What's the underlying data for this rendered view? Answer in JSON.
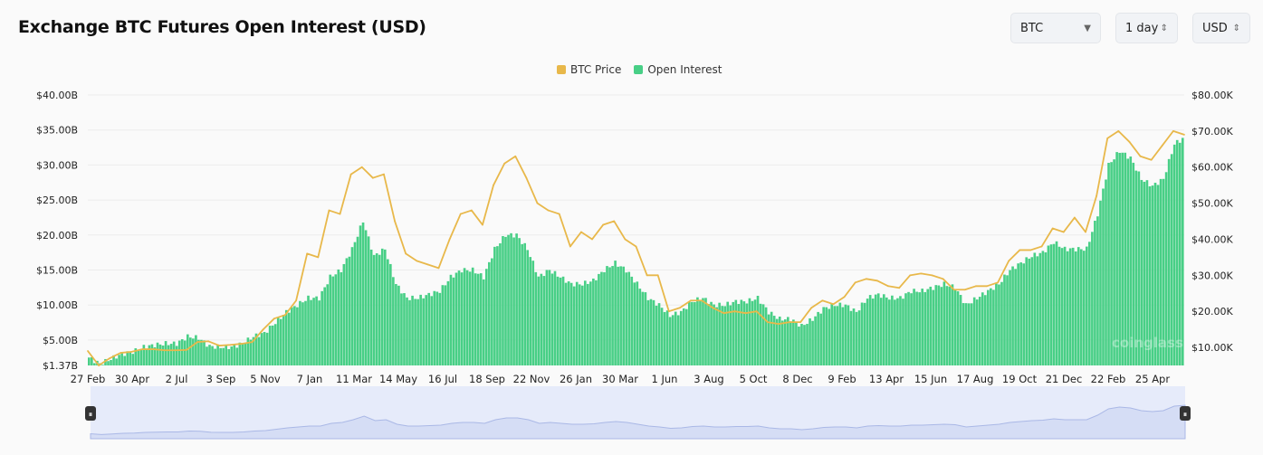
{
  "header": {
    "title": "Exchange BTC Futures Open Interest (USD)",
    "coin_select": "BTC",
    "interval_select": "1 day",
    "currency_select": "USD"
  },
  "watermark": "coinglass",
  "colors": {
    "price": "#e8b84a",
    "oi": "#48cf86",
    "navigator": "#e6ebfa"
  },
  "chart_data": {
    "type": "bar+line",
    "title": "Exchange BTC Futures Open Interest (USD)",
    "legend": [
      "BTC Price",
      "Open Interest"
    ],
    "legend_position": "top",
    "grid": true,
    "x_tick_labels": [
      "27 Feb",
      "30 Apr",
      "2 Jul",
      "3 Sep",
      "5 Nov",
      "7 Jan",
      "11 Mar",
      "14 May",
      "16 Jul",
      "18 Sep",
      "22 Nov",
      "26 Jan",
      "30 Mar",
      "1 Jun",
      "3 Aug",
      "5 Oct",
      "8 Dec",
      "9 Feb",
      "13 Apr",
      "15 Jun",
      "17 Aug",
      "19 Oct",
      "21 Dec",
      "22 Feb",
      "25 Apr"
    ],
    "y_left": {
      "ticks": [
        "$1.37B",
        "$5.00B",
        "$10.00B",
        "$15.00B",
        "$20.00B",
        "$25.00B",
        "$30.00B",
        "$35.00B",
        "$40.00B"
      ],
      "tick_values": [
        1.37,
        5,
        10,
        15,
        20,
        25,
        30,
        35,
        40
      ],
      "ylim": [
        1.37,
        40
      ],
      "unit": "USD billions"
    },
    "y_right": {
      "ticks": [
        "$10.00K",
        "$20.00K",
        "$30.00K",
        "$40.00K",
        "$50.00K",
        "$60.00K",
        "$70.00K",
        "$80.00K"
      ],
      "tick_values": [
        10,
        20,
        30,
        40,
        50,
        60,
        70,
        80
      ],
      "ylim": [
        5,
        80
      ],
      "unit": "USD thousands"
    },
    "series": [
      {
        "name": "Open Interest",
        "axis": "left",
        "type": "bar",
        "values": [
          2.5,
          1.6,
          2.3,
          3,
          3.3,
          4,
          4.3,
          4.5,
          4.5,
          5.5,
          5.3,
          4.1,
          4,
          4,
          4.5,
          5.5,
          6,
          7.5,
          9,
          10,
          11,
          11,
          14,
          15,
          18,
          22,
          17,
          18,
          13,
          11,
          11,
          11.5,
          12,
          14,
          15,
          15,
          14,
          18,
          20,
          20,
          18,
          14,
          15,
          14,
          13,
          13,
          13.5,
          15,
          16,
          15,
          13,
          11,
          10,
          8.5,
          9,
          10.5,
          11,
          10,
          10,
          10.5,
          10.5,
          11,
          9,
          8,
          8,
          7,
          8,
          9.5,
          10,
          10,
          9,
          11,
          11.5,
          11,
          11,
          12,
          12,
          12.5,
          13,
          12.5,
          10,
          11,
          12,
          13,
          15,
          16,
          17,
          17.5,
          19,
          18,
          18,
          18,
          23,
          30,
          32,
          31,
          28,
          27,
          28,
          33,
          34
        ]
      },
      {
        "name": "BTC Price",
        "axis": "right",
        "type": "line",
        "values": [
          9,
          5,
          7,
          8.5,
          8.8,
          9.5,
          9.5,
          9.2,
          9.2,
          9.3,
          11.5,
          11.7,
          10.5,
          10.7,
          11,
          11.5,
          15,
          18,
          19,
          23,
          36,
          35,
          48,
          47,
          58,
          60,
          57,
          58,
          45,
          36,
          34,
          33,
          32,
          40,
          47,
          48,
          44,
          55,
          61,
          63,
          57,
          50,
          48,
          47,
          38,
          42,
          40,
          44,
          45,
          40,
          38,
          30,
          30,
          20,
          21,
          23,
          23,
          21,
          19.5,
          20,
          19.5,
          20,
          17,
          16.5,
          17,
          17,
          21,
          23,
          22,
          24,
          28,
          29,
          28.5,
          27,
          26.5,
          30,
          30.5,
          30,
          29,
          26,
          26,
          27,
          27,
          28,
          34,
          37,
          37,
          38,
          43,
          42,
          46,
          42,
          52,
          68,
          70,
          67,
          63,
          62,
          66,
          70,
          69
        ]
      }
    ]
  }
}
